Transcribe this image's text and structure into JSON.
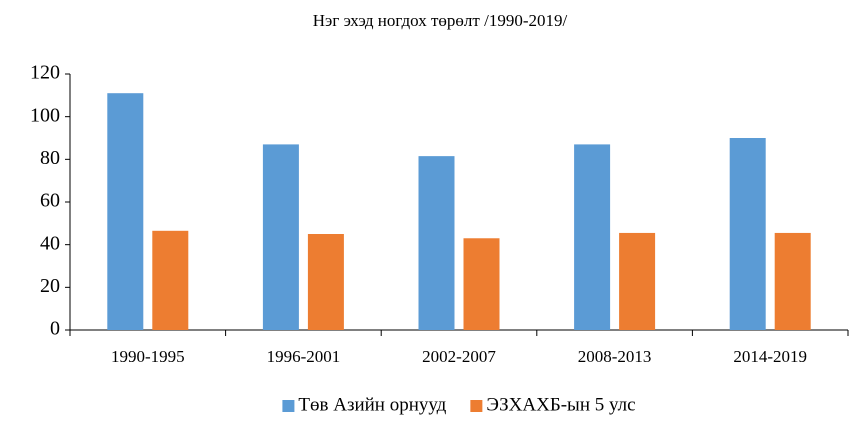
{
  "chart_data": {
    "type": "bar",
    "title": "Нэг эхэд ногдох төрөлт /1990-2019/",
    "categories": [
      "1990-1995",
      "1996-2001",
      "2002-2007",
      "2008-2013",
      "2014-2019"
    ],
    "series": [
      {
        "name": "Төв Азийн орнууд",
        "color": "#5b9bd5",
        "values": [
          111,
          87,
          81.5,
          87,
          90
        ]
      },
      {
        "name": "ЭЗХАХБ-ын 5 улс",
        "color": "#ed7d31",
        "values": [
          46.5,
          45,
          43,
          45.5,
          45.5
        ]
      }
    ],
    "ylim": [
      0,
      120
    ],
    "yticks": [
      0,
      20,
      40,
      60,
      80,
      100,
      120
    ],
    "grid": false,
    "legend": "bottom"
  }
}
